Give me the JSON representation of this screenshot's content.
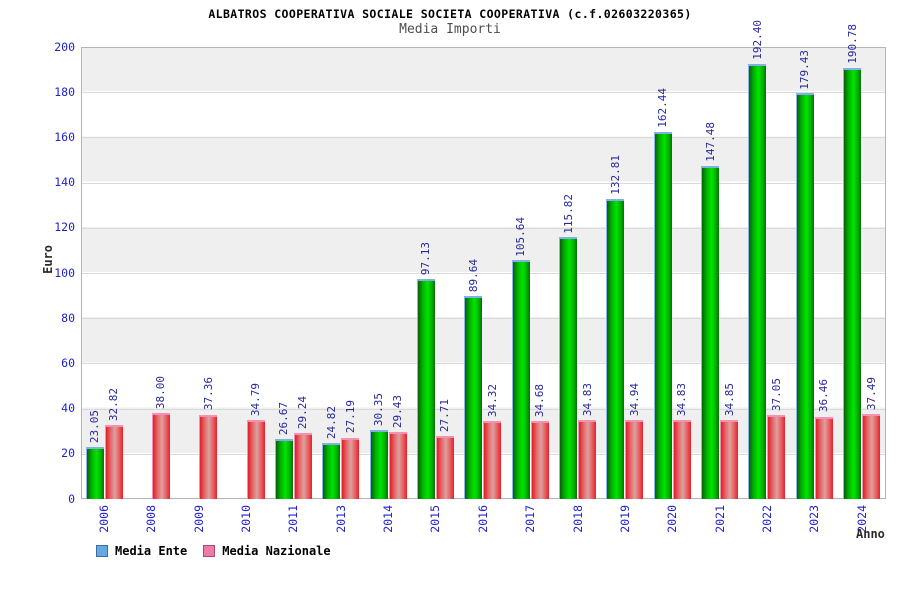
{
  "header": {
    "title": "ALBATROS COOPERATIVA SOCIALE SOCIETA COOPERATIVA (c.f.02603220365)",
    "subtitle": "Media Importi"
  },
  "legend": {
    "items": [
      {
        "label": "Media Ente",
        "color": "#66aadd"
      },
      {
        "label": "Media Nazionale",
        "color": "#ee7aa8"
      }
    ]
  },
  "chart_data": {
    "type": "bar",
    "title": "ALBATROS COOPERATIVA SOCIALE SOCIETA COOPERATIVA (c.f.02603220365)",
    "subtitle": "Media Importi",
    "xlabel": "Anno",
    "ylabel": "Euro",
    "ylim": [
      0,
      200
    ],
    "ytick_step": 20,
    "yticks": [
      0,
      20,
      40,
      60,
      80,
      100,
      120,
      140,
      160,
      180,
      200
    ],
    "grid": "horizontal",
    "legend_position": "bottom-left",
    "categories": [
      "2006",
      "2008",
      "2009",
      "2010",
      "2011",
      "2013",
      "2014",
      "2015",
      "2016",
      "2017",
      "2018",
      "2019",
      "2020",
      "2021",
      "2022",
      "2023",
      "2024"
    ],
    "series": [
      {
        "name": "Media Ente",
        "legend_color": "#66aadd",
        "bar_style": "green",
        "values": [
          23.05,
          null,
          null,
          null,
          26.67,
          24.82,
          30.35,
          97.13,
          89.64,
          105.64,
          115.82,
          132.81,
          162.44,
          147.48,
          192.4,
          179.43,
          190.78
        ],
        "labels": [
          "23.05",
          "",
          "",
          "",
          "26.67",
          "24.82",
          "30.35",
          "97.13",
          "89.64",
          "105.64",
          "115.82",
          "132.81",
          "162.44",
          "147.48",
          "192.40",
          "179.43",
          "190.78"
        ]
      },
      {
        "name": "Media Nazionale",
        "legend_color": "#ee7aa8",
        "bar_style": "red",
        "values": [
          32.82,
          38.0,
          37.36,
          34.79,
          29.24,
          27.19,
          29.43,
          27.71,
          34.32,
          34.68,
          34.83,
          34.94,
          34.83,
          34.85,
          37.05,
          36.46,
          37.49
        ],
        "labels": [
          "32.82",
          "38.00",
          "37.36",
          "34.79",
          "29.24",
          "27.19",
          "29.43",
          "27.71",
          "34.32",
          "34.68",
          "34.83",
          "34.94",
          "34.83",
          "34.85",
          "37.05",
          "36.46",
          "37.49"
        ]
      }
    ]
  }
}
